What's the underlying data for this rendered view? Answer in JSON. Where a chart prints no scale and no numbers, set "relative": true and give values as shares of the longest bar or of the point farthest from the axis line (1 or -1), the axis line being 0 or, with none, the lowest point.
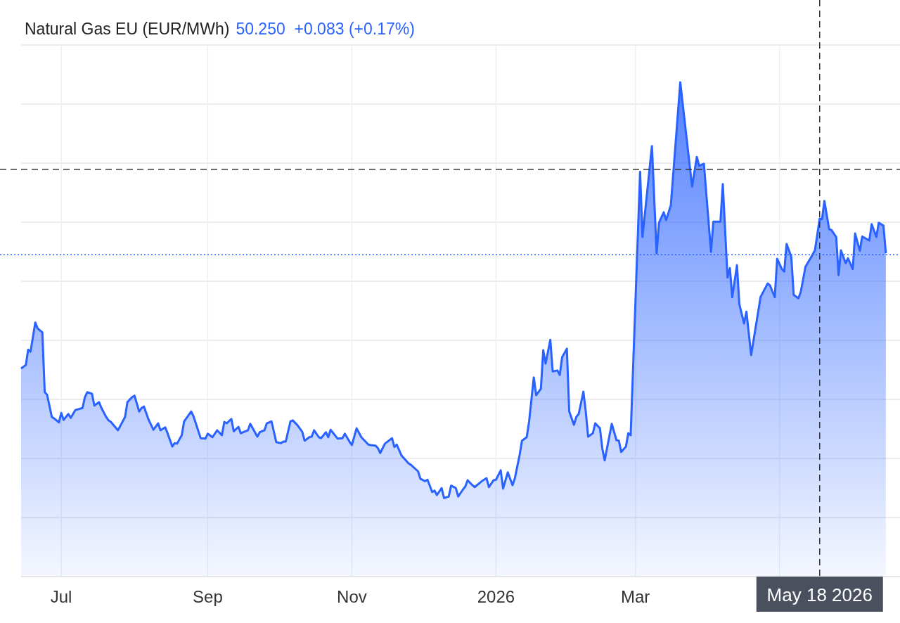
{
  "chart_data": {
    "type": "area",
    "title": "Natural Gas EU (EUR/MWh)",
    "subtitle": "50.250  +0.083 (+0.17%)",
    "relative": true,
    "grid": true,
    "xlim": [
      "2025-06-14",
      "2026-06-21"
    ],
    "xticks": [
      {
        "value": "2025-07-01",
        "label": "Jul"
      },
      {
        "value": "2025-09-01",
        "label": "Sep"
      },
      {
        "value": "2025-11-01",
        "label": "Nov"
      },
      {
        "value": "2026-01-01",
        "label": "2026"
      },
      {
        "value": "2026-03-01",
        "label": "Mar"
      },
      {
        "value": "2026-05-01",
        "label": null
      }
    ],
    "x": [
      "2025-06-14",
      "2025-06-16",
      "2025-06-17",
      "2025-06-18",
      "2025-06-20",
      "2025-06-21",
      "2025-06-23",
      "2025-06-24",
      "2025-06-25",
      "2025-06-27",
      "2025-06-28",
      "2025-06-30",
      "2025-07-01",
      "2025-07-02",
      "2025-07-04",
      "2025-07-05",
      "2025-07-07",
      "2025-07-10",
      "2025-07-11",
      "2025-07-12",
      "2025-07-14",
      "2025-07-15",
      "2025-07-17",
      "2025-07-18",
      "2025-07-20",
      "2025-07-21",
      "2025-07-22",
      "2025-07-25",
      "2025-07-28",
      "2025-07-29",
      "2025-07-31",
      "2025-08-01",
      "2025-08-03",
      "2025-08-04",
      "2025-08-05",
      "2025-08-07",
      "2025-08-09",
      "2025-08-11",
      "2025-08-12",
      "2025-08-14",
      "2025-08-15",
      "2025-08-17",
      "2025-08-18",
      "2025-08-19",
      "2025-08-21",
      "2025-08-22",
      "2025-08-25",
      "2025-08-26",
      "2025-08-29",
      "2025-08-31",
      "2025-09-01",
      "2025-09-03",
      "2025-09-05",
      "2025-09-07",
      "2025-09-08",
      "2025-09-09",
      "2025-09-11",
      "2025-09-12",
      "2025-09-14",
      "2025-09-15",
      "2025-09-18",
      "2025-09-19",
      "2025-09-22",
      "2025-09-23",
      "2025-09-25",
      "2025-09-26",
      "2025-09-28",
      "2025-09-30",
      "2025-10-02",
      "2025-10-03",
      "2025-10-04",
      "2025-10-06",
      "2025-10-07",
      "2025-10-09",
      "2025-10-11",
      "2025-10-12",
      "2025-10-14",
      "2025-10-15",
      "2025-10-16",
      "2025-10-18",
      "2025-10-19",
      "2025-10-21",
      "2025-10-22",
      "2025-10-23",
      "2025-10-26",
      "2025-10-28",
      "2025-10-29",
      "2025-10-31",
      "2025-11-01",
      "2025-11-03",
      "2025-11-05",
      "2025-11-08",
      "2025-11-09",
      "2025-11-11",
      "2025-11-12",
      "2025-11-13",
      "2025-11-15",
      "2025-11-18",
      "2025-11-19",
      "2025-11-20",
      "2025-11-22",
      "2025-11-25",
      "2025-11-26",
      "2025-11-29",
      "2025-11-30",
      "2025-12-02",
      "2025-12-03",
      "2025-12-05",
      "2025-12-06",
      "2025-12-07",
      "2025-12-09",
      "2025-12-10",
      "2025-12-12",
      "2025-12-13",
      "2025-12-15",
      "2025-12-16",
      "2025-12-18",
      "2025-12-19",
      "2025-12-20",
      "2025-12-22",
      "2025-12-23",
      "2025-12-25",
      "2025-12-26",
      "2025-12-28",
      "2025-12-29",
      "2025-12-31",
      "2026-01-01",
      "2026-01-03",
      "2026-01-04",
      "2026-01-06",
      "2026-01-08",
      "2026-01-09",
      "2026-01-11",
      "2026-01-12",
      "2026-01-14",
      "2026-01-15",
      "2026-01-17",
      "2026-01-18",
      "2026-01-20",
      "2026-01-21",
      "2026-01-22",
      "2026-01-24",
      "2026-01-25",
      "2026-01-27",
      "2026-01-28",
      "2026-01-29",
      "2026-01-31",
      "2026-02-01",
      "2026-02-03",
      "2026-02-04",
      "2026-02-05",
      "2026-02-07",
      "2026-02-08",
      "2026-02-09",
      "2026-02-11",
      "2026-02-12",
      "2026-02-14",
      "2026-02-15",
      "2026-02-16",
      "2026-02-19",
      "2026-02-21",
      "2026-02-22",
      "2026-02-23",
      "2026-02-25",
      "2026-02-26",
      "2026-02-27",
      "2026-03-03",
      "2026-03-04",
      "2026-03-08",
      "2026-03-10",
      "2026-03-11",
      "2026-03-13",
      "2026-03-14",
      "2026-03-16",
      "2026-03-20",
      "2026-03-25",
      "2026-03-27",
      "2026-03-28",
      "2026-03-30",
      "2026-04-02",
      "2026-04-03",
      "2026-04-06",
      "2026-04-07",
      "2026-04-09",
      "2026-04-10",
      "2026-04-11",
      "2026-04-13",
      "2026-04-14",
      "2026-04-16",
      "2026-04-17",
      "2026-04-19",
      "2026-04-23",
      "2026-04-26",
      "2026-04-27",
      "2026-04-29",
      "2026-04-30",
      "2026-05-02",
      "2026-05-03",
      "2026-05-04",
      "2026-05-06",
      "2026-05-07",
      "2026-05-09",
      "2026-05-10",
      "2026-05-12",
      "2026-05-14",
      "2026-05-16",
      "2026-05-18",
      "2026-05-19",
      "2026-05-20",
      "2026-05-22",
      "2026-05-23",
      "2026-05-25",
      "2026-05-26",
      "2026-05-27",
      "2026-05-29",
      "2026-05-30",
      "2026-06-01",
      "2026-06-02",
      "2026-06-04",
      "2026-06-05",
      "2026-06-08",
      "2026-06-09",
      "2026-06-11",
      "2026-06-12",
      "2026-06-14",
      "2026-06-15"
    ],
    "series": [
      {
        "color": "#2962ff",
        "values": [
          0.421,
          0.428,
          0.459,
          0.455,
          0.514,
          0.502,
          0.494,
          0.373,
          0.368,
          0.323,
          0.32,
          0.312,
          0.331,
          0.317,
          0.329,
          0.321,
          0.337,
          0.341,
          0.363,
          0.373,
          0.37,
          0.346,
          0.353,
          0.341,
          0.323,
          0.316,
          0.313,
          0.296,
          0.323,
          0.353,
          0.363,
          0.366,
          0.334,
          0.341,
          0.344,
          0.317,
          0.297,
          0.31,
          0.296,
          0.302,
          0.29,
          0.263,
          0.27,
          0.269,
          0.286,
          0.314,
          0.334,
          0.324,
          0.28,
          0.279,
          0.289,
          0.282,
          0.296,
          0.286,
          0.313,
          0.31,
          0.319,
          0.294,
          0.303,
          0.29,
          0.296,
          0.309,
          0.283,
          0.292,
          0.296,
          0.31,
          0.314,
          0.272,
          0.27,
          0.273,
          0.273,
          0.314,
          0.316,
          0.306,
          0.293,
          0.275,
          0.282,
          0.283,
          0.296,
          0.282,
          0.28,
          0.292,
          0.282,
          0.297,
          0.279,
          0.28,
          0.289,
          0.273,
          0.266,
          0.3,
          0.282,
          0.267,
          0.266,
          0.265,
          0.26,
          0.25,
          0.269,
          0.28,
          0.262,
          0.267,
          0.245,
          0.229,
          0.226,
          0.213,
          0.198,
          0.193,
          0.196,
          0.171,
          0.174,
          0.165,
          0.179,
          0.159,
          0.162,
          0.184,
          0.179,
          0.162,
          0.176,
          0.182,
          0.195,
          0.185,
          0.181,
          0.189,
          0.193,
          0.199,
          0.181,
          0.195,
          0.196,
          0.215,
          0.178,
          0.211,
          0.185,
          0.199,
          0.246,
          0.275,
          0.282,
          0.313,
          0.403,
          0.367,
          0.38,
          0.458,
          0.431,
          0.479,
          0.415,
          0.417,
          0.408,
          0.444,
          0.461,
          0.334,
          0.307,
          0.323,
          0.329,
          0.374,
          0.334,
          0.283,
          0.29,
          0.31,
          0.3,
          0.259,
          0.235,
          0.309,
          0.276,
          0.275,
          0.252,
          0.263,
          0.29,
          0.286,
          0.819,
          0.687,
          0.871,
          0.654,
          0.716,
          0.737,
          0.721,
          0.751,
          1,
          0.789,
          0.849,
          0.831,
          0.835,
          0.657,
          0.718,
          0.718,
          0.794,
          0.605,
          0.624,
          0.565,
          0.63,
          0.551,
          0.512,
          0.536,
          0.448,
          0.566,
          0.593,
          0.589,
          0.565,
          0.643,
          0.622,
          0.617,
          0.673,
          0.647,
          0.57,
          0.563,
          0.576,
          0.627,
          0.643,
          0.66,
          0.724,
          0.723,
          0.76,
          0.703,
          0.701,
          0.687,
          0.61,
          0.66,
          0.634,
          0.644,
          0.622,
          0.694,
          0.659,
          0.688,
          0.68,
          0.713,
          0.687,
          0.716,
          0.71,
          0.654
        ]
      }
    ],
    "ref_lines": [
      {
        "axis": "x",
        "value": "2026-05-18",
        "label": "May 18 2026",
        "color": "#333333",
        "line_style": "dashed"
      },
      {
        "axis": "y",
        "value": 0.824,
        "color": "#333333",
        "line_style": "dashed"
      },
      {
        "axis": "y",
        "value": 0.651,
        "color": "#2962ff",
        "line_style": "dotted"
      }
    ]
  }
}
